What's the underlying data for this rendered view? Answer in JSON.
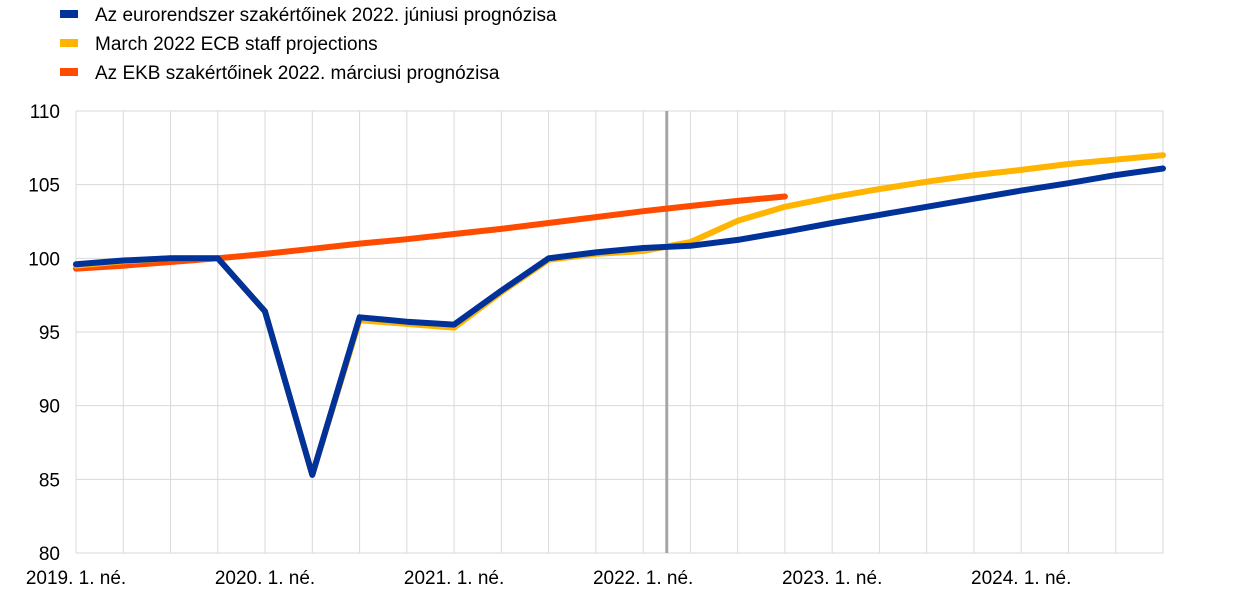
{
  "chart_data": {
    "type": "line",
    "title": "",
    "xlabel": "",
    "ylabel": "",
    "ylim": [
      80,
      110
    ],
    "yticks": [
      80,
      85,
      90,
      95,
      100,
      105,
      110
    ],
    "grid": true,
    "legend_placement": "top-left",
    "x": [
      "2019Q1",
      "2019Q2",
      "2019Q3",
      "2019Q4",
      "2020Q1",
      "2020Q2",
      "2020Q3",
      "2020Q4",
      "2021Q1",
      "2021Q2",
      "2021Q3",
      "2021Q4",
      "2022Q1",
      "2022Q2",
      "2022Q3",
      "2022Q4",
      "2023Q1",
      "2023Q2",
      "2023Q3",
      "2023Q4",
      "2024Q1",
      "2024Q2",
      "2024Q3",
      "2024Q4"
    ],
    "xtick_labels": [
      {
        "index": 0,
        "label": "2019. 1. né."
      },
      {
        "index": 4,
        "label": "2020. 1. né."
      },
      {
        "index": 8,
        "label": "2021. 1. né."
      },
      {
        "index": 12,
        "label": "2022. 1. né."
      },
      {
        "index": 16,
        "label": "2023. 1. né."
      },
      {
        "index": 20,
        "label": "2024. 1. né."
      }
    ],
    "vertical_marker_between": [
      "2022Q1",
      "2022Q2"
    ],
    "vertical_marker_color": "#a6a6a6",
    "series": [
      {
        "name": "Az EKB szakértőinek 2022. márciusi prognózisa",
        "color": "#ff4b00",
        "values": [
          99.3,
          99.5,
          99.75,
          100.0,
          100.3,
          100.65,
          101.0,
          101.3,
          101.65,
          102.0,
          102.4,
          102.8,
          103.2,
          103.55,
          103.9,
          104.2,
          null,
          null,
          null,
          null,
          null,
          null,
          null,
          null
        ]
      },
      {
        "name": "March 2022 ECB staff projections",
        "color": "#ffb400",
        "values": [
          99.5,
          99.8,
          100.0,
          100.0,
          96.4,
          85.3,
          95.8,
          95.55,
          95.3,
          97.7,
          99.9,
          100.3,
          100.5,
          101.1,
          102.55,
          103.5,
          104.15,
          104.7,
          105.2,
          105.65,
          106.0,
          106.4,
          106.7,
          107.0
        ]
      },
      {
        "name": "Az eurorendszer szakértőinek 2022. júniusi prognózisa",
        "color": "#003299",
        "values": [
          99.6,
          99.85,
          100.0,
          100.0,
          96.4,
          85.3,
          96.0,
          95.7,
          95.5,
          97.8,
          100.0,
          100.4,
          100.7,
          100.85,
          101.25,
          101.8,
          102.4,
          102.95,
          103.5,
          104.05,
          104.6,
          105.1,
          105.65,
          106.1
        ]
      }
    ],
    "legend": [
      {
        "label": "Az eurorendszer szakértőinek 2022. júniusi prognózisa",
        "color": "#003299"
      },
      {
        "label": "March 2022 ECB staff projections",
        "color": "#ffb400"
      },
      {
        "label": "Az EKB szakértőinek 2022. márciusi prognózisa",
        "color": "#ff4b00"
      }
    ]
  }
}
